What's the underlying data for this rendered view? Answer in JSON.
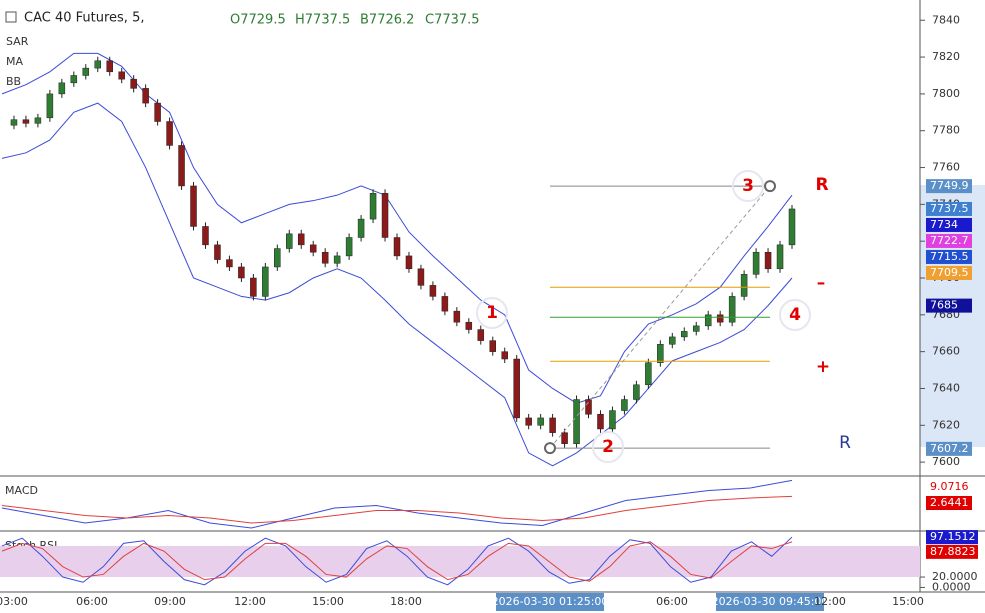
{
  "chart_data": {
    "type": "candlestick",
    "title": "CAC 40 Futures, 5,",
    "ohlc": [
      "O7729.5",
      "H7737.5",
      "B7726.2",
      "C7737.5"
    ],
    "indicators": [
      "SAR",
      "MA",
      "BB"
    ],
    "closes": [
      7783,
      7786,
      7784,
      7787,
      7800,
      7806,
      7810,
      7814,
      7818,
      7812,
      7808,
      7803,
      7795,
      7785,
      7772,
      7750,
      7728,
      7718,
      7710,
      7706,
      7700,
      7690,
      7706,
      7716,
      7724,
      7718,
      7714,
      7708,
      7712,
      7722,
      7732,
      7746,
      7722,
      7712,
      7705,
      7696,
      7690,
      7682,
      7676,
      7672,
      7666,
      7660,
      7656,
      7624,
      7620,
      7624,
      7616,
      7610,
      7634,
      7626,
      7618,
      7628,
      7634,
      7642,
      7654,
      7664,
      7668,
      7671,
      7674,
      7680,
      7676,
      7690,
      7702,
      7714,
      7705,
      7718,
      7737.5
    ],
    "up_color": "#2e7d32",
    "down_color": "#8b1a1a",
    "bands": [
      {
        "name": "BB upper",
        "color": "#3b4bd8",
        "values": [
          7800,
          7805,
          7812,
          7822,
          7822,
          7815,
          7800,
          7790,
          7760,
          7740,
          7730,
          7735,
          7740,
          7742,
          7745,
          7750,
          7745,
          7725,
          7712,
          7700,
          7688,
          7680,
          7650,
          7640,
          7632,
          7636,
          7660,
          7675,
          7680,
          7686,
          7695,
          7712,
          7728,
          7745
        ]
      },
      {
        "name": "BB lower",
        "color": "#3b4bd8",
        "values": [
          7765,
          7768,
          7775,
          7790,
          7795,
          7785,
          7760,
          7730,
          7700,
          7695,
          7690,
          7688,
          7692,
          7700,
          7705,
          7700,
          7688,
          7675,
          7665,
          7655,
          7645,
          7635,
          7605,
          7598,
          7605,
          7615,
          7625,
          7640,
          7655,
          7660,
          7665,
          7672,
          7685,
          7700
        ]
      }
    ],
    "ylim": [
      7593,
      7851
    ],
    "yticks": [
      7600,
      7620,
      7640,
      7660,
      7680,
      7700,
      7720,
      7740,
      7760,
      7780,
      7800,
      7820,
      7840
    ],
    "price_tags": [
      {
        "value": 7749.9,
        "color": "#5b8fc7"
      },
      {
        "value": 7737.5,
        "color": "#3f7fd0"
      },
      {
        "value": 7734.0,
        "color": "#1a1acc"
      },
      {
        "value": 7722.7,
        "color": "#e040e0"
      },
      {
        "value": 7715.5,
        "color": "#2050d0"
      },
      {
        "value": 7709.5,
        "color": "#f0a030"
      },
      {
        "value": 7685.0,
        "color": "#10109a"
      },
      {
        "value": 7607.2,
        "color": "#5b8fc7"
      }
    ],
    "levels": [
      {
        "value": 7749.9,
        "color": "#888888"
      },
      {
        "value": 7695,
        "color": "#e89a00"
      },
      {
        "value": 7678.7,
        "color": "#2ea02e"
      },
      {
        "value": 7654.8,
        "color": "#e8a000"
      },
      {
        "value": 7607.6,
        "color": "#888888"
      }
    ],
    "annotations": [
      "1",
      "2",
      "3",
      "4",
      "R",
      "–",
      "+",
      "R"
    ],
    "x_labels": [
      "03:00",
      "06:00",
      "09:00",
      "12:00",
      "15:00",
      "18:00",
      "2026-03-30 01:25:00",
      "06:00",
      "2026-03-30 09:45:00",
      "12:00",
      "15:00"
    ],
    "macd": {
      "label": "MACD",
      "ylim": [
        -10.8,
        10
      ],
      "macd": [
        -2,
        -5,
        -8,
        -6,
        -3,
        -8,
        -10,
        -6,
        -2,
        -1,
        -4,
        -6,
        -8,
        -9,
        -4,
        1,
        3,
        5,
        6,
        9.0716
      ],
      "signal": [
        -1,
        -3,
        -5,
        -6,
        -5,
        -6,
        -8,
        -7,
        -5,
        -3,
        -3,
        -4,
        -6,
        -7,
        -6,
        -3,
        -1,
        1,
        2,
        2.6441
      ],
      "macd_color": "#3b4bd8",
      "signal_color": "#e04040"
    },
    "stoch": {
      "label": "Stoch RSI",
      "ylim": [
        -5,
        105
      ],
      "yticks": [
        {
          "value": 0,
          "label": "0.0000"
        },
        {
          "value": 20,
          "label": "20.0000"
        }
      ],
      "k": [
        80,
        95,
        60,
        20,
        10,
        40,
        85,
        90,
        50,
        15,
        5,
        30,
        70,
        95,
        80,
        40,
        10,
        25,
        75,
        90,
        60,
        20,
        5,
        35,
        80,
        95,
        70,
        30,
        8,
        15,
        60,
        92,
        85,
        40,
        10,
        20,
        70,
        88,
        60,
        97.1512
      ],
      "d": [
        70,
        85,
        75,
        40,
        20,
        25,
        60,
        85,
        70,
        35,
        15,
        20,
        55,
        85,
        85,
        60,
        25,
        20,
        55,
        80,
        75,
        40,
        15,
        25,
        60,
        85,
        80,
        50,
        20,
        12,
        40,
        80,
        88,
        60,
        25,
        18,
        50,
        80,
        75,
        87.8823
      ],
      "k_color": "#3b4bd8",
      "d_color": "#e04040",
      "k_tag_color": "#1a1acc",
      "d_tag_color": "#e00000"
    }
  }
}
